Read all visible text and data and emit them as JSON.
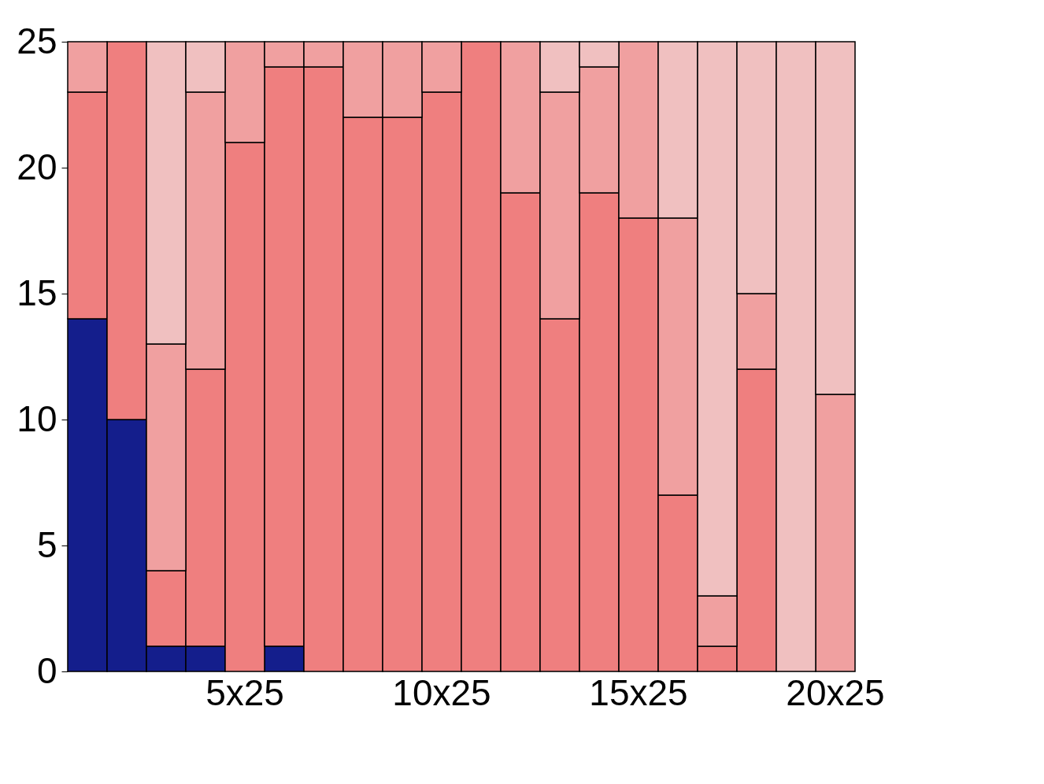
{
  "chart_data": {
    "type": "bar",
    "stacked": true,
    "categories": [
      null,
      null,
      null,
      null,
      "5x25",
      null,
      null,
      null,
      null,
      "10x25",
      null,
      null,
      null,
      null,
      "15x25",
      null,
      null,
      null,
      null,
      "20x25"
    ],
    "ylim": [
      0,
      25
    ],
    "yticks": [
      0,
      5,
      10,
      15,
      20,
      25
    ],
    "series": [
      {
        "color": "#141e8c",
        "values": [
          14,
          10,
          1,
          1,
          null,
          1,
          null,
          null,
          null,
          null,
          null,
          null,
          null,
          null,
          null,
          null,
          null,
          null,
          null,
          null
        ]
      },
      {
        "color": "#ef7f7f",
        "values": [
          9,
          15,
          3,
          11,
          21,
          23,
          24,
          22,
          22,
          23,
          25,
          19,
          14,
          19,
          18,
          7,
          1,
          12,
          null,
          null
        ]
      },
      {
        "color": "#f0a0a0",
        "values": [
          2,
          null,
          9,
          11,
          4,
          1,
          1,
          3,
          3,
          2,
          null,
          6,
          9,
          5,
          7,
          11,
          2,
          3,
          null,
          11
        ]
      },
      {
        "color": "#f0c0c0",
        "values": [
          null,
          null,
          12,
          2,
          null,
          null,
          null,
          null,
          null,
          null,
          null,
          null,
          2,
          1,
          null,
          7,
          22,
          10,
          25,
          14
        ]
      }
    ],
    "legend": false
  }
}
